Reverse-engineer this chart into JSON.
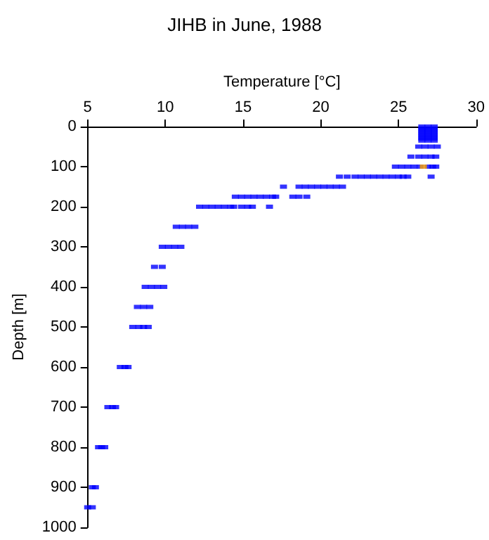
{
  "chart_data": {
    "type": "scatter",
    "title": "JIHB in June, 1988",
    "xlabel": "Temperature [°C]",
    "ylabel": "Depth [m]",
    "xlim": [
      5,
      30
    ],
    "xticks": [
      5,
      10,
      15,
      20,
      25,
      30
    ],
    "ylim": [
      1000,
      0
    ],
    "yticks": [
      0,
      100,
      200,
      300,
      400,
      500,
      600,
      700,
      800,
      900,
      1000
    ],
    "grid": false,
    "marker": "square",
    "series": [
      {
        "color": "#0000ff",
        "x": [
          26.5,
          26.9,
          27.3,
          26.5,
          26.9,
          27.3,
          26.5,
          26.9,
          27.3,
          26.5,
          26.9,
          27.3,
          26.5,
          26.9,
          27.3,
          26.5,
          26.9,
          27.3,
          26.5,
          26.9,
          27.3,
          26.5,
          26.9,
          27.3,
          26.3,
          26.7,
          27.1,
          27.5,
          25.8,
          26.3,
          26.7,
          27.1,
          27.4,
          24.8,
          25.2,
          25.6,
          26.0,
          26.4,
          26.9,
          27.2,
          27.4,
          21.2,
          21.7,
          22.2,
          22.6,
          23.0,
          23.4,
          23.8,
          24.2,
          24.6,
          25.0,
          25.3,
          25.6,
          27.1,
          17.6,
          18.6,
          19.0,
          19.4,
          19.8,
          20.2,
          20.6,
          21.0,
          21.4,
          14.5,
          14.9,
          15.3,
          15.7,
          16.1,
          16.5,
          16.9,
          17.1,
          18.2,
          18.6,
          19.1,
          12.2,
          12.6,
          13.0,
          13.4,
          13.8,
          14.2,
          14.4,
          14.9,
          15.3,
          15.6,
          16.7,
          10.7,
          11.1,
          11.5,
          11.9,
          9.8,
          10.2,
          10.6,
          11.0,
          9.3,
          9.8,
          8.7,
          9.1,
          9.5,
          9.9,
          8.2,
          8.6,
          9.0,
          7.9,
          8.3,
          8.6,
          8.9,
          7.1,
          7.4,
          7.6,
          6.3,
          6.6,
          6.8,
          5.7,
          5.9,
          6.1,
          5.3,
          5.5,
          5.0,
          5.3
        ],
        "values": [
          0,
          0,
          0,
          5,
          5,
          5,
          10,
          10,
          10,
          15,
          15,
          15,
          20,
          20,
          20,
          25,
          25,
          25,
          30,
          30,
          30,
          35,
          35,
          35,
          50,
          50,
          50,
          50,
          75,
          75,
          75,
          75,
          75,
          100,
          100,
          100,
          100,
          100,
          100,
          100,
          100,
          125,
          125,
          125,
          125,
          125,
          125,
          125,
          125,
          125,
          125,
          125,
          125,
          125,
          150,
          150,
          150,
          150,
          150,
          150,
          150,
          150,
          150,
          175,
          175,
          175,
          175,
          175,
          175,
          175,
          175,
          175,
          175,
          175,
          200,
          200,
          200,
          200,
          200,
          200,
          200,
          200,
          200,
          200,
          200,
          250,
          250,
          250,
          250,
          300,
          300,
          300,
          300,
          350,
          350,
          400,
          400,
          400,
          400,
          450,
          450,
          450,
          500,
          500,
          500,
          500,
          600,
          600,
          600,
          700,
          700,
          700,
          800,
          800,
          800,
          900,
          900,
          950,
          950
        ]
      },
      {
        "color": "#ffa500",
        "x": [
          26.6
        ],
        "values": [
          100
        ]
      }
    ]
  }
}
